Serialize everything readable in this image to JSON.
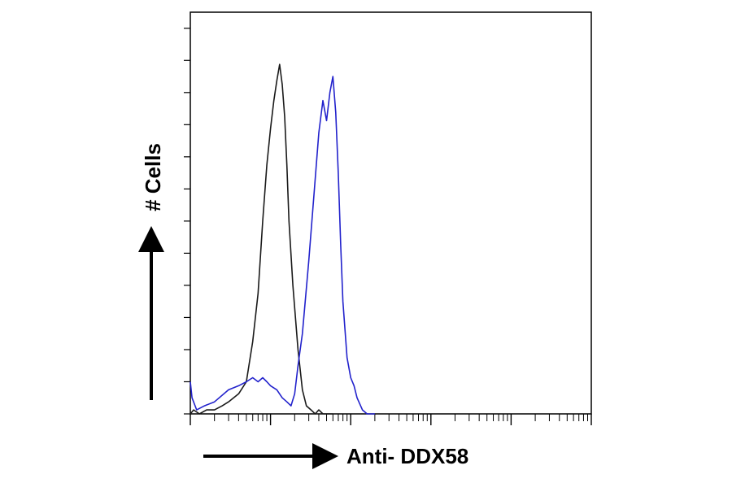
{
  "chart_data": {
    "type": "line",
    "title": "",
    "xlabel": "Anti- DDX58",
    "ylabel": "# Cells",
    "x_scale": "log",
    "xlim": [
      1,
      100000
    ],
    "ylim": [
      0,
      100
    ],
    "grid": false,
    "legend": "none",
    "series": [
      {
        "name": "",
        "color": "#1a1a1a",
        "x": [
          1,
          1.1,
          1.3,
          1.6,
          2,
          2.5,
          3,
          4,
          5,
          6,
          7,
          8,
          9,
          10,
          11,
          12,
          13,
          14,
          15,
          16,
          17,
          19,
          22,
          25,
          28,
          32,
          36,
          40,
          45,
          50,
          60
        ],
        "y": [
          0,
          1,
          0,
          1,
          1,
          2,
          3,
          5,
          8,
          18,
          30,
          48,
          62,
          71,
          78,
          83,
          87,
          82,
          74,
          62,
          48,
          32,
          16,
          6,
          2,
          1,
          0,
          1,
          0,
          0,
          0
        ]
      },
      {
        "name": "",
        "color": "#2222cc",
        "x": [
          1,
          1.05,
          1.2,
          1.5,
          2,
          3,
          4,
          5,
          6,
          7,
          8,
          9,
          10,
          12,
          14,
          16,
          18,
          20,
          22,
          25,
          30,
          35,
          40,
          45,
          50,
          55,
          60,
          65,
          70,
          75,
          80,
          90,
          100,
          110,
          120,
          140,
          160,
          180,
          200
        ],
        "y": [
          8,
          4,
          1,
          2,
          3,
          6,
          7,
          8,
          9,
          8,
          9,
          8,
          7,
          6,
          4,
          3,
          2,
          5,
          12,
          20,
          38,
          55,
          70,
          78,
          73,
          80,
          84,
          75,
          60,
          42,
          28,
          14,
          9,
          7,
          4,
          1,
          0,
          0,
          0
        ]
      }
    ]
  }
}
